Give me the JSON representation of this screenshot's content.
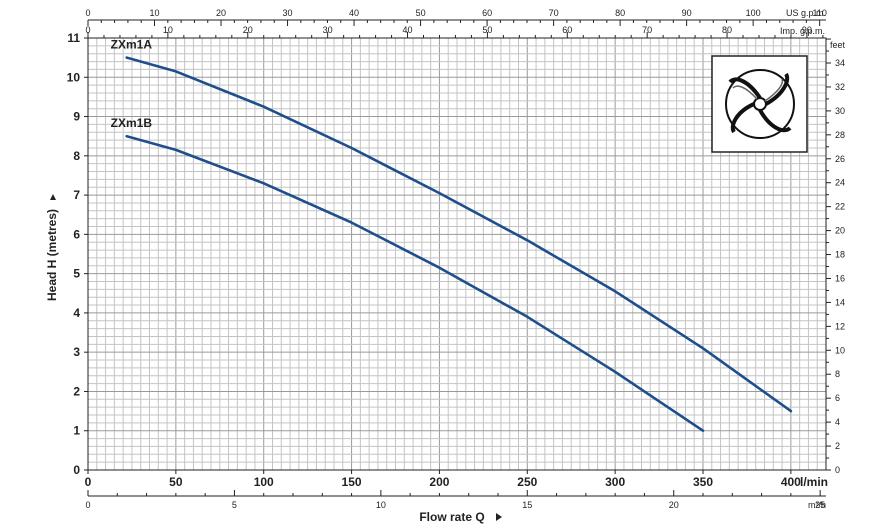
{
  "chart_data": {
    "type": "line",
    "title": "",
    "xlabel": "Flow rate  Q",
    "ylabel": "Head H (metres)",
    "x_unit": "l/min",
    "xlim": [
      0,
      420
    ],
    "ylim": [
      0,
      11
    ],
    "x_ticks": [
      0,
      50,
      100,
      150,
      200,
      250,
      300,
      350,
      400
    ],
    "y_ticks": [
      0,
      1,
      2,
      3,
      4,
      5,
      6,
      7,
      8,
      9,
      10,
      11
    ],
    "grid": true,
    "series": [
      {
        "name": "ZXm1A",
        "color": "#1f4e8c",
        "x": [
          22,
          50,
          100,
          150,
          200,
          250,
          300,
          350,
          400
        ],
        "y": [
          10.5,
          10.15,
          9.25,
          8.2,
          7.05,
          5.85,
          4.55,
          3.1,
          1.5
        ]
      },
      {
        "name": "ZXm1B",
        "color": "#1f4e8c",
        "x": [
          22,
          50,
          100,
          150,
          200,
          250,
          300,
          350
        ],
        "y": [
          8.5,
          8.15,
          7.3,
          6.3,
          5.15,
          3.9,
          2.5,
          1.0
        ]
      }
    ],
    "secondary_axes": {
      "us_gpm": {
        "label": "US g.p.m.",
        "ticks": [
          0,
          10,
          20,
          30,
          40,
          50,
          60,
          70,
          80,
          90,
          100,
          110
        ]
      },
      "imp_gpm": {
        "label": "Imp. g.p.m.",
        "ticks": [
          0,
          10,
          20,
          30,
          40,
          50,
          60,
          70,
          80,
          90
        ]
      },
      "m3h": {
        "label": "m³/h",
        "ticks": [
          0,
          5,
          10,
          15,
          20,
          25
        ]
      },
      "feet": {
        "label": "feet",
        "ticks": [
          0,
          2,
          4,
          6,
          8,
          10,
          12,
          14,
          16,
          18,
          20,
          22,
          24,
          26,
          28,
          30,
          32,
          34
        ]
      }
    },
    "inset_icon": "impeller-icon"
  }
}
